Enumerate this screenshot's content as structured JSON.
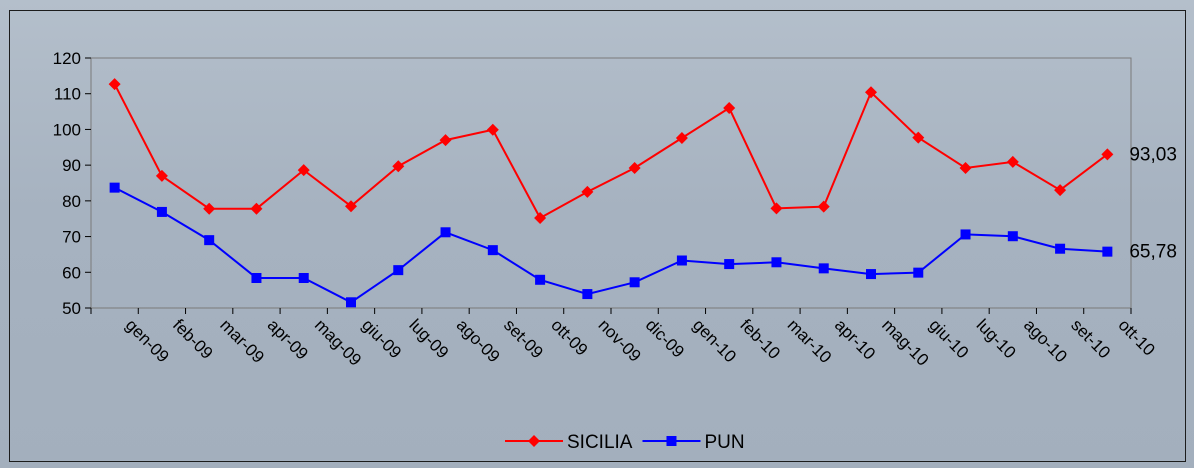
{
  "chart_data": {
    "type": "line",
    "title": "",
    "xlabel": "",
    "ylabel": "",
    "categories": [
      "gen-09",
      "feb-09",
      "mar-09",
      "apr-09",
      "mag-09",
      "giu-09",
      "lug-09",
      "ago-09",
      "set-09",
      "ott-09",
      "nov-09",
      "dic-09",
      "gen-10",
      "feb-10",
      "mar-10",
      "apr-10",
      "mag-10",
      "giu-10",
      "lug-10",
      "ago-10",
      "set-10",
      "ott-10"
    ],
    "ylim": [
      50,
      120
    ],
    "yticks": [
      50,
      60,
      70,
      80,
      90,
      100,
      110,
      120
    ],
    "grid": false,
    "legend_position": "bottom",
    "series": [
      {
        "name": "SICILIA",
        "color": "#ff0000",
        "marker": "diamond",
        "values": [
          112.7,
          87.0,
          77.8,
          77.8,
          88.6,
          78.5,
          89.7,
          97.0,
          99.9,
          75.2,
          82.5,
          89.2,
          97.6,
          106.0,
          77.9,
          78.4,
          110.4,
          97.7,
          89.2,
          90.9,
          83.0,
          93.03
        ],
        "end_label": "93,03"
      },
      {
        "name": "PUN",
        "color": "#0000ff",
        "marker": "square",
        "values": [
          83.7,
          76.9,
          69.0,
          58.4,
          58.4,
          51.6,
          60.6,
          71.2,
          66.2,
          57.9,
          53.9,
          57.2,
          63.3,
          62.3,
          62.8,
          61.1,
          59.5,
          59.9,
          70.6,
          70.1,
          66.6,
          65.78
        ],
        "end_label": "65,78"
      }
    ]
  }
}
